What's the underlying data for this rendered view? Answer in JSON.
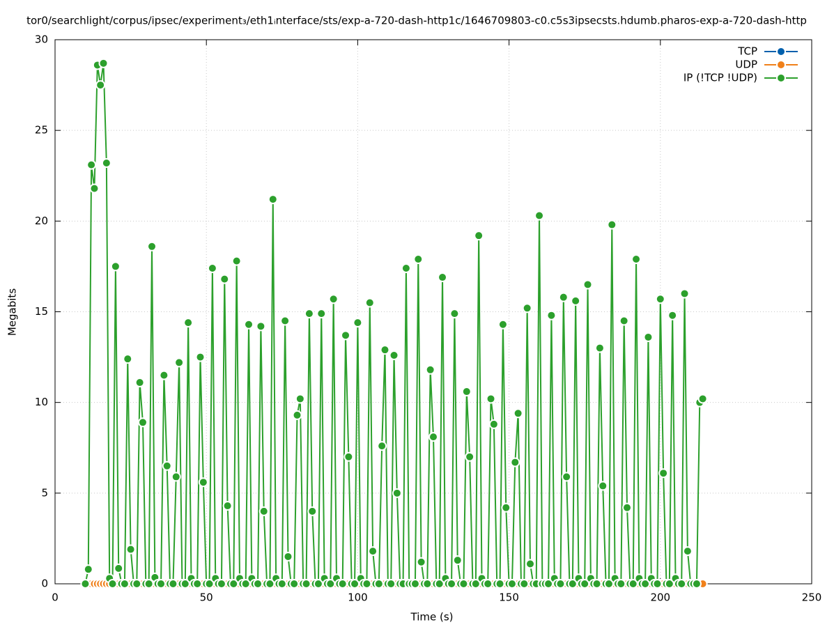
{
  "chart_data": {
    "type": "line",
    "title": "tor0/searchlight/corpus/ipsec/experiment₃/eth1ᵢnterface/sts/exp-a-720-dash-http1c/1646709803-c0.c5s3ipsecsts.hdumb.pharos-exp-a-720-dash-http",
    "xlabel": "Time (s)",
    "ylabel": "Megabits",
    "xlim": [
      0,
      250
    ],
    "xticks": [
      0,
      50,
      100,
      150,
      200,
      250
    ],
    "ylim": [
      0,
      30
    ],
    "yticks": [
      0,
      5,
      10,
      15,
      20,
      25,
      30
    ],
    "grid": true,
    "legend": "upper right",
    "x": [
      10,
      11,
      12,
      13,
      14,
      15,
      16,
      17,
      18,
      19,
      20,
      21,
      22,
      23,
      24,
      25,
      26,
      27,
      28,
      29,
      30,
      31,
      32,
      33,
      34,
      35,
      36,
      37,
      38,
      39,
      40,
      41,
      42,
      43,
      44,
      45,
      46,
      47,
      48,
      49,
      50,
      51,
      52,
      53,
      54,
      55,
      56,
      57,
      58,
      59,
      60,
      61,
      62,
      63,
      64,
      65,
      66,
      67,
      68,
      69,
      70,
      71,
      72,
      73,
      74,
      75,
      76,
      77,
      78,
      79,
      80,
      81,
      82,
      83,
      84,
      85,
      86,
      87,
      88,
      89,
      90,
      91,
      92,
      93,
      94,
      95,
      96,
      97,
      98,
      99,
      100,
      101,
      102,
      103,
      104,
      105,
      106,
      107,
      108,
      109,
      110,
      111,
      112,
      113,
      114,
      115,
      116,
      117,
      118,
      119,
      120,
      121,
      122,
      123,
      124,
      125,
      126,
      127,
      128,
      129,
      130,
      131,
      132,
      133,
      134,
      135,
      136,
      137,
      138,
      139,
      140,
      141,
      142,
      143,
      144,
      145,
      146,
      147,
      148,
      149,
      150,
      151,
      152,
      153,
      154,
      155,
      156,
      157,
      158,
      159,
      160,
      161,
      162,
      163,
      164,
      165,
      166,
      167,
      168,
      169,
      170,
      171,
      172,
      173,
      174,
      175,
      176,
      177,
      178,
      179,
      180,
      181,
      182,
      183,
      184,
      185,
      186,
      187,
      188,
      189,
      190,
      191,
      192,
      193,
      194,
      195,
      196,
      197,
      198,
      199,
      200,
      201,
      202,
      203,
      204,
      205,
      206,
      207,
      208,
      209,
      210,
      211,
      212,
      213,
      214
    ],
    "series": [
      {
        "name": "TCP",
        "color": "#0060ad",
        "values": [
          0,
          0,
          0,
          0,
          0,
          0,
          0,
          0,
          0,
          0,
          0,
          0,
          0,
          0,
          0,
          0,
          0,
          0,
          0,
          0,
          0,
          0,
          0,
          0,
          0,
          0,
          0,
          0,
          0,
          0,
          0,
          0,
          0,
          0,
          0,
          0,
          0,
          0,
          0,
          0,
          0,
          0,
          0,
          0,
          0,
          0,
          0,
          0,
          0,
          0,
          0,
          0,
          0,
          0,
          0,
          0,
          0,
          0,
          0,
          0,
          0,
          0,
          0,
          0,
          0,
          0,
          0,
          0,
          0,
          0,
          0,
          0,
          0,
          0,
          0,
          0,
          0,
          0,
          0,
          0,
          0,
          0,
          0,
          0,
          0,
          0,
          0,
          0,
          0,
          0,
          0,
          0,
          0,
          0,
          0,
          0,
          0,
          0,
          0,
          0,
          0,
          0,
          0,
          0,
          0,
          0,
          0,
          0,
          0,
          0,
          0,
          0,
          0,
          0,
          0,
          0,
          0,
          0,
          0,
          0,
          0,
          0,
          0,
          0,
          0,
          0,
          0,
          0,
          0,
          0,
          0,
          0,
          0,
          0,
          0,
          0,
          0,
          0,
          0,
          0,
          0,
          0,
          0,
          0,
          0,
          0,
          0,
          0,
          0,
          0,
          0,
          0,
          0,
          0,
          0,
          0,
          0,
          0,
          0,
          0,
          0,
          0,
          0,
          0,
          0,
          0,
          0,
          0,
          0,
          0,
          0,
          0,
          0,
          0,
          0,
          0,
          0,
          0,
          0,
          0,
          0,
          0,
          0,
          0,
          0,
          0,
          0,
          0,
          0,
          0,
          0,
          0,
          0,
          0,
          0,
          0,
          0,
          0,
          0,
          0,
          0,
          0,
          0,
          0,
          0
        ]
      },
      {
        "name": "UDP",
        "color": "#f0801a",
        "values": [
          0,
          0,
          0,
          0,
          0,
          0,
          0,
          0,
          0,
          0,
          0,
          0,
          0,
          0,
          0,
          0,
          0,
          0,
          0,
          0,
          0,
          0,
          0,
          0,
          0,
          0,
          0,
          0,
          0,
          0,
          0,
          0,
          0,
          0,
          0,
          0,
          0,
          0,
          0,
          0,
          0,
          0,
          0,
          0,
          0,
          0,
          0,
          0,
          0,
          0,
          0,
          0,
          0,
          0,
          0,
          0,
          0,
          0,
          0,
          0,
          0,
          0,
          0,
          0,
          0,
          0,
          0,
          0,
          0,
          0,
          0,
          0,
          0,
          0,
          0,
          0,
          0,
          0,
          0,
          0,
          0,
          0,
          0,
          0,
          0,
          0,
          0,
          0,
          0,
          0,
          0,
          0,
          0,
          0,
          0,
          0,
          0,
          0,
          0,
          0,
          0,
          0,
          0,
          0,
          0,
          0,
          0,
          0,
          0,
          0,
          0,
          0,
          0,
          0,
          0,
          0,
          0,
          0,
          0,
          0,
          0,
          0,
          0,
          0,
          0,
          0,
          0,
          0,
          0,
          0,
          0,
          0,
          0,
          0,
          0,
          0,
          0,
          0,
          0,
          0,
          0,
          0,
          0,
          0,
          0,
          0,
          0,
          0,
          0,
          0,
          0,
          0,
          0,
          0,
          0,
          0,
          0,
          0,
          0,
          0,
          0,
          0,
          0,
          0,
          0,
          0,
          0,
          0,
          0,
          0,
          0,
          0,
          0,
          0,
          0,
          0,
          0,
          0,
          0,
          0,
          0,
          0,
          0,
          0,
          0,
          0,
          0,
          0,
          0,
          0,
          0,
          0,
          0,
          0,
          0,
          0,
          0,
          0,
          0,
          0,
          0,
          0,
          0,
          0,
          0
        ]
      },
      {
        "name": "IP (!TCP  !UDP)",
        "color": "#2ca02c",
        "values": [
          0,
          0.8,
          23.1,
          21.8,
          28.6,
          27.5,
          28.7,
          23.2,
          0.3,
          0,
          17.5,
          0.85,
          0,
          0,
          12.4,
          1.9,
          0,
          0,
          11.1,
          8.9,
          0,
          0,
          18.6,
          0.35,
          0,
          0,
          11.5,
          6.5,
          0,
          0,
          5.9,
          12.2,
          0,
          0,
          14.4,
          0.3,
          0,
          0,
          12.5,
          5.6,
          0,
          0,
          17.4,
          0.3,
          0,
          0,
          16.8,
          4.3,
          0,
          0,
          17.8,
          0.3,
          0,
          0,
          14.3,
          0.3,
          0,
          0,
          14.2,
          4.0,
          0,
          0,
          21.2,
          0.3,
          0,
          0,
          14.5,
          1.5,
          0,
          0,
          9.3,
          10.2,
          0,
          0,
          14.9,
          4.0,
          0,
          0,
          14.9,
          0.3,
          0,
          0,
          15.7,
          0.3,
          0,
          0,
          13.7,
          7.0,
          0,
          0,
          14.4,
          0.3,
          0,
          0,
          15.5,
          1.8,
          0,
          0,
          7.6,
          12.9,
          0,
          0,
          12.6,
          5.0,
          0,
          0,
          17.4,
          0,
          0,
          0,
          17.9,
          1.2,
          0,
          0,
          11.8,
          8.1,
          0,
          0,
          16.9,
          0.3,
          0,
          0,
          14.9,
          1.3,
          0,
          0,
          10.6,
          7.0,
          0,
          0,
          19.2,
          0.3,
          0,
          0,
          10.2,
          8.8,
          0,
          0,
          14.3,
          4.2,
          0,
          0,
          6.7,
          9.4,
          0,
          0,
          15.2,
          1.1,
          0,
          0,
          20.3,
          0,
          0,
          0,
          14.8,
          0.3,
          0,
          0,
          15.8,
          5.9,
          0,
          0,
          15.6,
          0.3,
          0,
          0,
          16.5,
          0.3,
          0,
          0,
          13.0,
          5.4,
          0,
          0,
          19.8,
          0.3,
          0,
          0,
          14.5,
          4.2,
          0,
          0,
          17.9,
          0.3,
          0,
          0,
          13.6,
          0.3,
          0,
          0,
          15.7,
          6.1,
          0,
          0,
          14.8,
          0.3,
          0,
          0,
          16.0,
          1.8,
          0,
          0,
          0,
          10.0,
          10.2
        ]
      }
    ]
  }
}
